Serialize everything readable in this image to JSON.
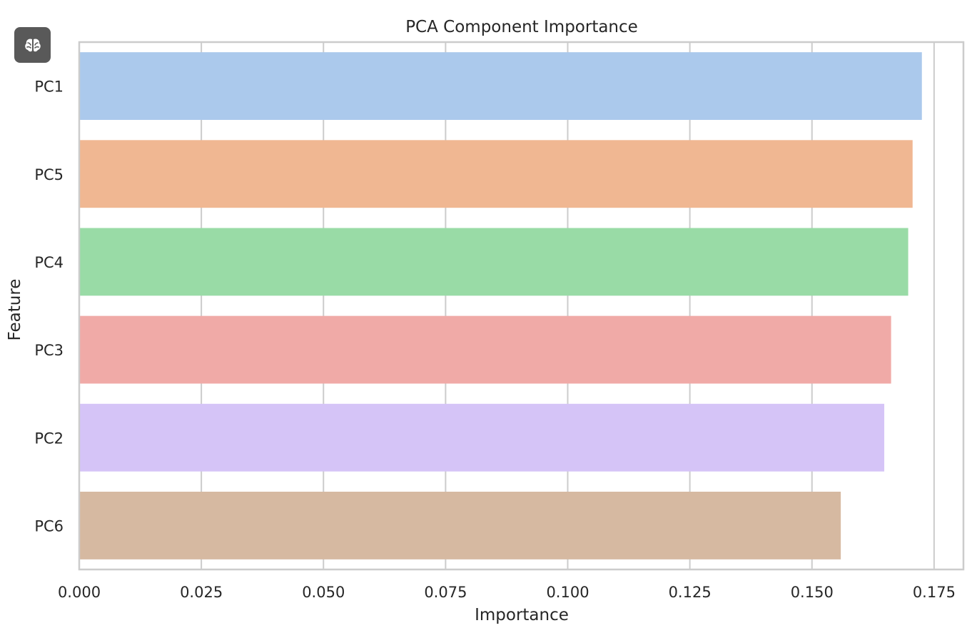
{
  "app_badge": {
    "icon": "brain-icon",
    "color": "#595959"
  },
  "chart_data": {
    "type": "bar",
    "orientation": "horizontal",
    "title": "PCA Component Importance",
    "xlabel": "Importance",
    "ylabel": "Feature",
    "categories": [
      "PC1",
      "PC5",
      "PC4",
      "PC3",
      "PC2",
      "PC6"
    ],
    "values": [
      0.1725,
      0.1706,
      0.1697,
      0.1662,
      0.1648,
      0.1559
    ],
    "colors": [
      "#abc9ec",
      "#f0b792",
      "#99dba6",
      "#f0aaa7",
      "#d5c4f7",
      "#d6b9a1"
    ],
    "xlim": [
      0,
      0.181
    ],
    "xticks": [
      0.0,
      0.025,
      0.05,
      0.075,
      0.1,
      0.125,
      0.15,
      0.175
    ],
    "xtick_labels": [
      "0.000",
      "0.025",
      "0.050",
      "0.075",
      "0.100",
      "0.125",
      "0.150",
      "0.175"
    ],
    "grid": "x",
    "legend": "none"
  }
}
